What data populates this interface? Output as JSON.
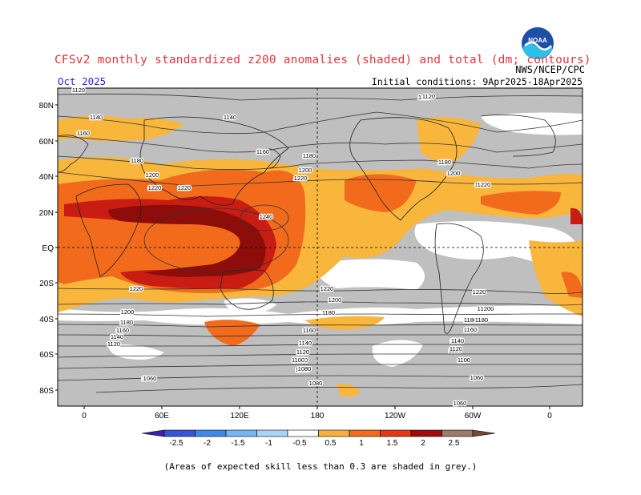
{
  "header": {
    "title": "CFSv2 monthly standardized z200 anomalies (shaded) and total (dm; contours)",
    "forecast_month": "Oct 2025",
    "initial_conditions": "Initial conditions: 9Apr2025-18Apr2025",
    "agency": "NWS/NCEP/CPC",
    "logo_text": "NOAA"
  },
  "map": {
    "lat_labels": [
      "80N",
      "60N",
      "40N",
      "20N",
      "EQ",
      "20S",
      "40S",
      "60S",
      "80S"
    ],
    "lon_labels": [
      "0",
      "60E",
      "120E",
      "180",
      "120W",
      "60W",
      "0"
    ],
    "contour_labels": [
      {
        "text": "1120"
      },
      {
        "text": "1140"
      },
      {
        "text": "1160"
      },
      {
        "text": "1180"
      },
      {
        "text": "1200"
      },
      {
        "text": "1220"
      },
      {
        "text": "1240"
      },
      {
        "text": "1120"
      },
      {
        "text": "1140"
      },
      {
        "text": "1180"
      },
      {
        "text": "1200"
      },
      {
        "text": "1220"
      },
      {
        "text": "1160"
      },
      {
        "text": "1180"
      },
      {
        "text": "1200"
      },
      {
        "text": "1220"
      },
      {
        "text": "1220"
      },
      {
        "text": "1200"
      },
      {
        "text": "1180"
      },
      {
        "text": "1160"
      },
      {
        "text": "1140"
      },
      {
        "text": "1120"
      },
      {
        "text": "1100"
      },
      {
        "text": "1080"
      },
      {
        "text": "1060"
      },
      {
        "text": "1220"
      },
      {
        "text": "1200"
      },
      {
        "text": "1180"
      },
      {
        "text": "1160"
      },
      {
        "text": "1140"
      },
      {
        "text": "1120"
      },
      {
        "text": "1100"
      },
      {
        "text": "1080"
      },
      {
        "text": "1060"
      },
      {
        "text": "1220"
      },
      {
        "text": "1200"
      },
      {
        "text": "1180"
      },
      {
        "text": "1160"
      },
      {
        "text": "1140"
      },
      {
        "text": "1120"
      },
      {
        "text": "1100"
      },
      {
        "text": "1060"
      },
      {
        "text": "1220"
      },
      {
        "text": "1080"
      },
      {
        "text": "1060"
      },
      {
        "text": "1120"
      },
      {
        "text": "1220"
      },
      {
        "text": "1200"
      },
      {
        "text": "1180"
      },
      {
        "text": "1160"
      },
      {
        "text": "1140"
      },
      {
        "text": "1120"
      }
    ]
  },
  "colorbar": {
    "labels": [
      "-2.5",
      "-2",
      "-1.5",
      "-1",
      "-0.5",
      "0.5",
      "1",
      "1.5",
      "2",
      "2.5"
    ],
    "colors": [
      "#3f1fb0",
      "#3a52d8",
      "#3f8ae8",
      "#74b6f2",
      "#a8d4fa",
      "#ffffff",
      "#f6b13a",
      "#f26b1c",
      "#e23a16",
      "#9e0c0c",
      "#9e7a6a",
      "#6b4a3a"
    ],
    "grey_color": "#bfbfbf"
  },
  "footnote": "(Areas of expected skill less than 0.3 are shaded in grey.)"
}
